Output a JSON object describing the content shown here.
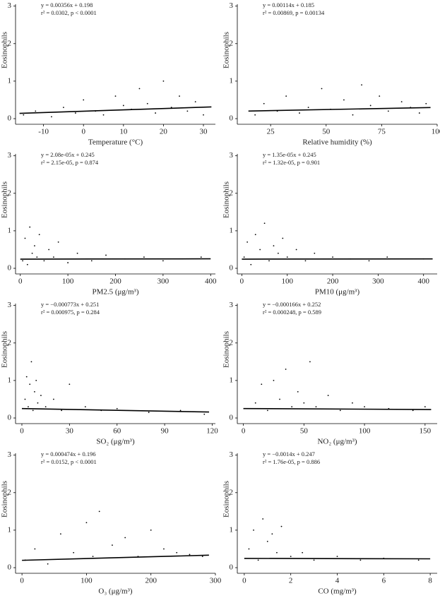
{
  "chart_data": [
    {
      "type": "scatter",
      "x_label": "Temperature (°C)",
      "y_label": "Eosinophils",
      "annotations": [
        "y = 0.00356x + 0.198",
        "r² = 0.0302, p < 0.0001"
      ],
      "xlim": [
        -17,
        33
      ],
      "xticks": [
        -10,
        0,
        10,
        20,
        30
      ],
      "ylim": [
        -0.15,
        3.05
      ],
      "yticks": [
        0,
        1,
        2,
        3
      ],
      "color": "#000000",
      "x": [
        -15,
        -12,
        -8,
        -5,
        -2,
        0,
        3,
        5,
        8,
        10,
        12,
        14,
        16,
        18,
        20,
        22,
        24,
        26,
        28,
        30
      ],
      "values": [
        0.1,
        0.2,
        0.05,
        0.3,
        0.15,
        0.5,
        0.2,
        0.1,
        0.6,
        0.35,
        0.25,
        0.8,
        0.4,
        0.15,
        1.0,
        0.3,
        0.6,
        0.2,
        0.45,
        0.1
      ],
      "fit": {
        "x": [
          -16,
          32
        ],
        "values": [
          0.141,
          0.312
        ]
      }
    },
    {
      "type": "scatter",
      "x_label": "Relative humidity (%)",
      "y_label": "Eosinophils",
      "annotations": [
        "y = 0.00114x + 0.185",
        "r² = 0.00869, p = 0.00134"
      ],
      "xlim": [
        10,
        100
      ],
      "xticks": [
        25,
        50,
        75,
        100
      ],
      "ylim": [
        -0.15,
        3.05
      ],
      "yticks": [
        0,
        1,
        2,
        3
      ],
      "color": "#000000",
      "x": [
        18,
        22,
        28,
        32,
        38,
        42,
        48,
        52,
        58,
        62,
        66,
        70,
        74,
        78,
        84,
        88,
        92,
        95
      ],
      "values": [
        0.1,
        0.4,
        0.2,
        0.6,
        0.15,
        0.3,
        0.8,
        0.25,
        0.5,
        0.1,
        0.9,
        0.35,
        0.6,
        0.2,
        0.45,
        0.3,
        0.15,
        0.4
      ],
      "fit": {
        "x": [
          15,
          97
        ],
        "values": [
          0.202,
          0.296
        ]
      }
    },
    {
      "type": "scatter",
      "x_label": "PM2.5 (μg/m³)",
      "y_label": "Eosinophils",
      "annotations": [
        "y = 2.08e-05x + 0.245",
        "r² = 2.15e-05, p = 0.874"
      ],
      "xlim": [
        -10,
        410
      ],
      "xticks": [
        0,
        100,
        200,
        300,
        400
      ],
      "ylim": [
        -0.15,
        3.05
      ],
      "yticks": [
        0,
        1,
        2,
        3
      ],
      "color": "#000000",
      "x": [
        5,
        10,
        15,
        20,
        25,
        30,
        35,
        40,
        50,
        60,
        70,
        80,
        100,
        120,
        150,
        180,
        220,
        260,
        300,
        380
      ],
      "values": [
        0.2,
        0.8,
        0.1,
        1.1,
        0.4,
        0.6,
        0.3,
        0.9,
        0.2,
        0.5,
        0.3,
        0.7,
        0.15,
        0.4,
        0.2,
        0.35,
        0.25,
        0.3,
        0.2,
        0.3
      ],
      "fit": {
        "x": [
          0,
          400
        ],
        "values": [
          0.245,
          0.253
        ]
      }
    },
    {
      "type": "scatter",
      "x_label": "PM10 (μg/m³)",
      "y_label": "Eosinophils",
      "annotations": [
        "y = 1.35e-05x + 0.245",
        "r² = 1.32e-05, p = 0.901"
      ],
      "xlim": [
        -10,
        430
      ],
      "xticks": [
        0,
        100,
        200,
        300,
        400
      ],
      "ylim": [
        -0.15,
        3.05
      ],
      "yticks": [
        0,
        1,
        2,
        3
      ],
      "color": "#000000",
      "x": [
        5,
        12,
        20,
        30,
        40,
        50,
        60,
        70,
        80,
        90,
        100,
        120,
        140,
        160,
        200,
        240,
        280,
        320,
        400
      ],
      "values": [
        0.3,
        0.7,
        0.1,
        0.9,
        0.5,
        1.2,
        0.2,
        0.6,
        0.4,
        0.8,
        0.3,
        0.5,
        0.2,
        0.4,
        0.3,
        0.25,
        0.2,
        0.3,
        0.25
      ],
      "fit": {
        "x": [
          0,
          420
        ],
        "values": [
          0.245,
          0.251
        ]
      }
    },
    {
      "type": "scatter",
      "x_label": "SO₂ (μg/m³)",
      "y_label": "Eosinophils",
      "annotations": [
        "y = −0.000773x + 0.251",
        "r² = 0.000975, p = 0.284"
      ],
      "xlim": [
        -4,
        122
      ],
      "xticks": [
        0,
        30,
        60,
        90,
        120
      ],
      "ylim": [
        -0.15,
        3.05
      ],
      "yticks": [
        0,
        1,
        2,
        3
      ],
      "color": "#000000",
      "x": [
        2,
        3,
        4,
        5,
        6,
        7,
        8,
        9,
        10,
        12,
        15,
        20,
        25,
        30,
        40,
        50,
        60,
        80,
        100,
        115
      ],
      "values": [
        0.5,
        1.1,
        0.3,
        0.9,
        1.5,
        0.2,
        0.7,
        1.0,
        0.4,
        0.6,
        0.3,
        0.5,
        0.2,
        0.9,
        0.3,
        0.2,
        0.25,
        0.15,
        0.2,
        0.1
      ],
      "fit": {
        "x": [
          0,
          118
        ],
        "values": [
          0.251,
          0.16
        ]
      }
    },
    {
      "type": "scatter",
      "x_label": "NO₂ (μg/m³)",
      "y_label": "Eosinophils",
      "annotations": [
        "y = −0.000166x + 0.252",
        "r² = 0.000248, p = 0.589"
      ],
      "xlim": [
        -5,
        160
      ],
      "xticks": [
        0,
        50,
        100,
        150
      ],
      "ylim": [
        -0.15,
        3.05
      ],
      "yticks": [
        0,
        1,
        2,
        3
      ],
      "color": "#000000",
      "x": [
        10,
        15,
        20,
        25,
        30,
        35,
        40,
        45,
        50,
        55,
        60,
        70,
        80,
        90,
        100,
        120,
        140,
        150
      ],
      "values": [
        0.4,
        0.9,
        0.2,
        1.0,
        0.5,
        1.3,
        0.3,
        0.7,
        0.4,
        1.5,
        0.3,
        0.6,
        0.2,
        0.4,
        0.3,
        0.25,
        0.2,
        0.3
      ],
      "fit": {
        "x": [
          0,
          155
        ],
        "values": [
          0.252,
          0.226
        ]
      }
    },
    {
      "type": "scatter",
      "x_label": "O₃ (μg/m³)",
      "y_label": "Eosinophils",
      "annotations": [
        "y = 0.000474x + 0.196",
        "r² = 0.0152, p < 0.0001"
      ],
      "xlim": [
        -10,
        300
      ],
      "xticks": [
        0,
        100,
        200,
        300
      ],
      "ylim": [
        -0.15,
        3.05
      ],
      "yticks": [
        0,
        1,
        2,
        3
      ],
      "color": "#000000",
      "x": [
        5,
        20,
        40,
        60,
        80,
        100,
        110,
        120,
        140,
        160,
        180,
        200,
        220,
        240,
        260,
        280
      ],
      "values": [
        0.2,
        0.5,
        0.1,
        0.9,
        0.4,
        1.2,
        0.3,
        1.5,
        0.6,
        0.8,
        0.3,
        1.0,
        0.5,
        0.4,
        0.35,
        0.3
      ],
      "fit": {
        "x": [
          0,
          290
        ],
        "values": [
          0.196,
          0.333
        ]
      }
    },
    {
      "type": "scatter",
      "x_label": "CO (mg/m³)",
      "y_label": "Eosinophils",
      "annotations": [
        "y = −0.0014x + 0.247",
        "r² = 1.76e-05, p = 0.886"
      ],
      "xlim": [
        -0.3,
        8.3
      ],
      "xticks": [
        0,
        2,
        4,
        6,
        8
      ],
      "ylim": [
        -0.15,
        3.05
      ],
      "yticks": [
        0,
        1,
        2,
        3
      ],
      "color": "#000000",
      "x": [
        0.2,
        0.4,
        0.6,
        0.8,
        1.0,
        1.2,
        1.4,
        1.6,
        2.0,
        2.5,
        3.0,
        4.0,
        5.0,
        6.0,
        7.5
      ],
      "values": [
        0.5,
        1.0,
        0.2,
        1.3,
        0.7,
        0.9,
        0.4,
        1.1,
        0.3,
        0.4,
        0.2,
        0.3,
        0.2,
        0.25,
        0.2
      ],
      "fit": {
        "x": [
          0,
          8
        ],
        "values": [
          0.247,
          0.236
        ]
      }
    }
  ]
}
